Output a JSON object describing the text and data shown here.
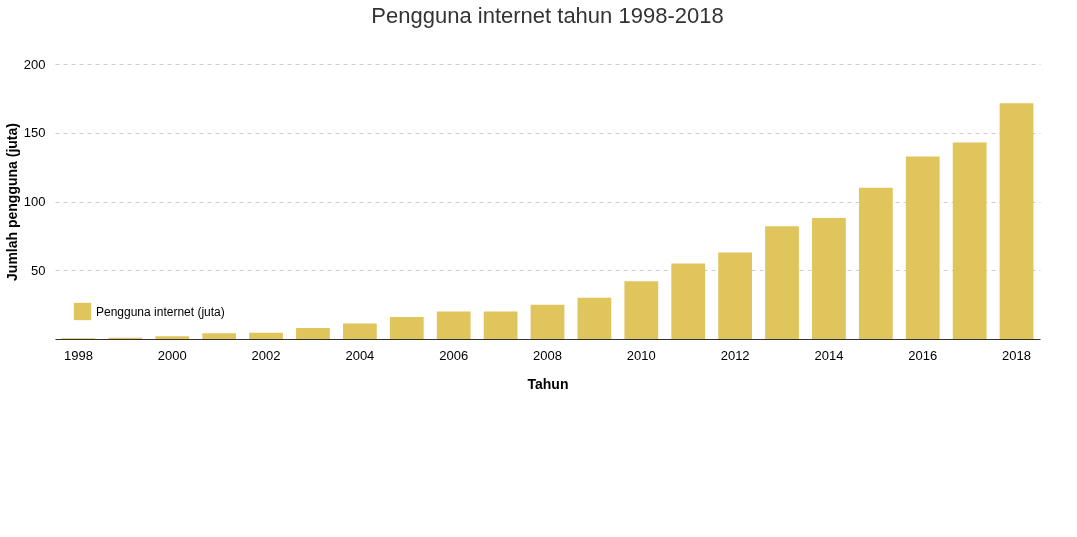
{
  "chart_data": {
    "type": "bar",
    "title": "Pengguna internet tahun 1998-2018",
    "xlabel": "Tahun",
    "ylabel": "Jumlah pengguna (juta)",
    "categories": [
      "1998",
      null,
      "2000",
      null,
      "2002",
      null,
      "2004",
      null,
      "2006",
      null,
      "2008",
      null,
      "2010",
      null,
      "2012",
      null,
      "2014",
      null,
      "2016",
      null,
      "2018"
    ],
    "series": [
      {
        "name": "Pengguna internet (juta)",
        "color": "#e0c45c",
        "values": [
          0.5,
          1,
          2,
          4.2,
          4.5,
          8,
          11.2,
          16,
          20,
          20,
          25,
          30,
          42,
          55,
          63,
          82,
          88,
          110,
          132.7,
          143,
          171.5
        ]
      }
    ],
    "ylim": [
      0,
      200
    ],
    "yticks": [
      50,
      100,
      150,
      200
    ],
    "grid": "y",
    "legend": "bottom left"
  }
}
